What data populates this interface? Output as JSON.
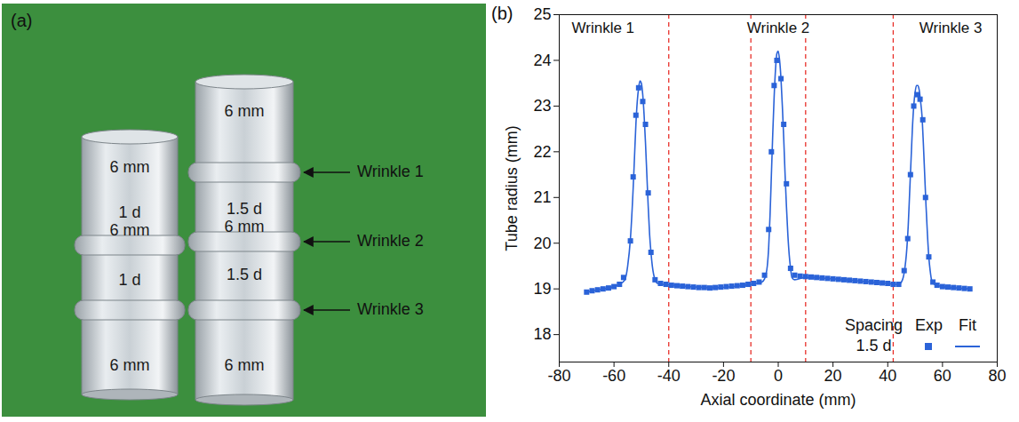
{
  "photo": {
    "label": "(a)",
    "tubes": [
      {
        "labels": [
          "6 mm",
          "1 d",
          "6 mm",
          "1 d",
          "6 mm"
        ]
      },
      {
        "labels": [
          "6 mm",
          "1.5 d",
          "6 mm",
          "1.5 d",
          "6 mm"
        ]
      }
    ],
    "arrows": [
      "Wrinkle 3",
      "Wrinkle 2",
      "Wrinkle 1"
    ]
  },
  "chart_data": {
    "type": "scatter",
    "title": "(b)",
    "x_label": "Axial coordinate (mm)",
    "y_label": "Tube radius (mm)",
    "xlim": [
      -80,
      80
    ],
    "xticks": [
      -80,
      -60,
      -40,
      -20,
      0,
      20,
      40,
      60,
      80
    ],
    "ylim": [
      17.4,
      25
    ],
    "yticks": [
      18,
      19,
      20,
      21,
      22,
      23,
      24,
      25
    ],
    "grid": false,
    "legend": "lower right",
    "legend_title": "Spacing",
    "legend_group": "1.5 d",
    "annotations": [
      {
        "text": "Wrinkle 1",
        "x": -64,
        "y": 24.7
      },
      {
        "text": "Wrinkle 2",
        "x": 0,
        "y": 24.7
      },
      {
        "text": "Wrinkle 3",
        "x": 63,
        "y": 24.7
      }
    ],
    "reference_lines": {
      "x": [
        -40,
        -10,
        10,
        42
      ],
      "color": "#e8302a",
      "line_style": "dashed"
    },
    "series": [
      {
        "name": "Exp",
        "type": "scatter",
        "marker": "square",
        "color": "#2b63d8",
        "x": [
          -70,
          -68,
          -66,
          -64,
          -62,
          -60,
          -58,
          -56.5,
          -54,
          -53,
          -52,
          -51,
          -49.5,
          -48.5,
          -47.5,
          -46.5,
          -45,
          -43,
          -41,
          -39,
          -37,
          -35,
          -33,
          -31,
          -29,
          -27,
          -25,
          -23,
          -21,
          -19,
          -17,
          -15,
          -13,
          -11,
          -9,
          -7,
          -5,
          -3.5,
          -2.5,
          -1.5,
          -0.5,
          1,
          2,
          3,
          4.5,
          6,
          8,
          10,
          12,
          14,
          16,
          18,
          20,
          22,
          24,
          26,
          28,
          30,
          32,
          34,
          36,
          38,
          40,
          42,
          44,
          46,
          47.3,
          48.3,
          49.5,
          50.7,
          51.8,
          52.8,
          53.8,
          55,
          56.5,
          58,
          60,
          62,
          64,
          66,
          68,
          70
        ],
        "values": [
          18.93,
          18.96,
          18.98,
          19.0,
          19.02,
          19.05,
          19.1,
          19.25,
          20.05,
          21.45,
          22.8,
          23.4,
          23.1,
          22.6,
          21.1,
          19.8,
          19.2,
          19.12,
          19.1,
          19.08,
          19.07,
          19.06,
          19.05,
          19.04,
          19.03,
          19.03,
          19.02,
          19.03,
          19.04,
          19.05,
          19.06,
          19.07,
          19.08,
          19.1,
          19.12,
          19.15,
          19.3,
          20.3,
          22.0,
          23.45,
          24.0,
          23.6,
          22.6,
          21.3,
          19.45,
          19.3,
          19.28,
          19.27,
          19.26,
          19.25,
          19.24,
          19.23,
          19.22,
          19.21,
          19.2,
          19.19,
          19.18,
          19.17,
          19.16,
          19.15,
          19.14,
          19.13,
          19.12,
          19.1,
          19.1,
          19.4,
          20.1,
          21.5,
          23.0,
          23.25,
          23.15,
          22.7,
          21.0,
          19.7,
          19.15,
          19.08,
          19.05,
          19.04,
          19.03,
          19.02,
          19.01,
          19.0
        ]
      },
      {
        "name": "Fit",
        "type": "line",
        "line_style": "solid",
        "color": "#2b63d8",
        "x": [
          -70,
          -66,
          -62,
          -58,
          -56,
          -55,
          -54,
          -53,
          -52.5,
          -52,
          -51.5,
          -51,
          -50.5,
          -50,
          -49.5,
          -49,
          -48.5,
          -48,
          -47.5,
          -47,
          -46.5,
          -46,
          -45,
          -44,
          -38,
          -30,
          -22,
          -14,
          -8,
          -6,
          -5,
          -4,
          -3.5,
          -3,
          -2.5,
          -2,
          -1.5,
          -1,
          -0.5,
          0,
          0.5,
          1,
          1.5,
          2,
          2.5,
          3,
          3.5,
          4,
          4.5,
          5,
          6,
          10,
          20,
          30,
          40,
          44,
          45,
          46,
          47,
          47.5,
          48,
          48.5,
          49,
          49.5,
          50,
          50.5,
          51,
          51.5,
          52,
          52.5,
          53,
          53.5,
          54,
          54.5,
          55,
          55.5,
          56,
          57,
          60,
          65,
          70
        ],
        "values": [
          18.93,
          18.98,
          19.02,
          19.1,
          19.2,
          19.5,
          20.1,
          21.2,
          21.9,
          22.6,
          23.1,
          23.4,
          23.55,
          23.5,
          23.25,
          22.8,
          22.2,
          21.5,
          20.8,
          20.2,
          19.8,
          19.5,
          19.2,
          19.12,
          19.08,
          19.04,
          19.03,
          19.07,
          19.12,
          19.15,
          19.22,
          19.5,
          19.9,
          20.6,
          21.5,
          22.4,
          23.2,
          23.8,
          24.15,
          24.2,
          24.0,
          23.6,
          23.0,
          22.3,
          21.5,
          20.8,
          20.2,
          19.75,
          19.45,
          19.25,
          19.2,
          19.25,
          19.22,
          19.17,
          19.12,
          19.1,
          19.15,
          19.35,
          19.9,
          20.4,
          21.1,
          21.8,
          22.5,
          23.0,
          23.3,
          23.45,
          23.45,
          23.35,
          23.1,
          22.8,
          22.2,
          21.5,
          20.8,
          20.2,
          19.7,
          19.4,
          19.2,
          19.1,
          19.05,
          19.02,
          19.0
        ]
      }
    ]
  }
}
